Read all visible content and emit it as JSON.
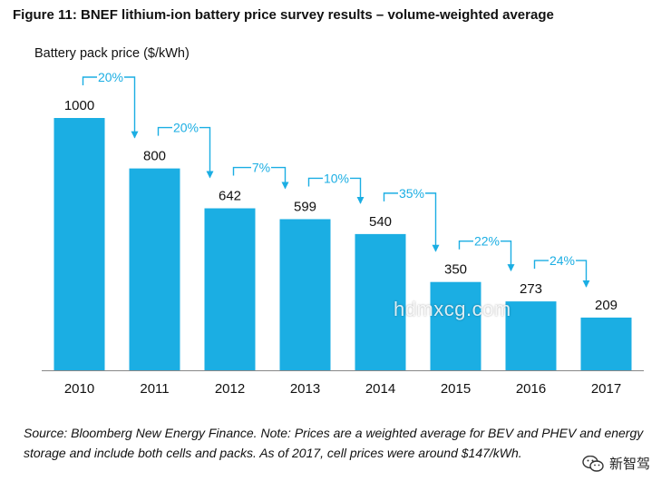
{
  "colors": {
    "bar": "#1BAEE3",
    "arrow": "#1BAEE3",
    "pct_text": "#1BAEE3",
    "axis": "#888888",
    "text": "#111111"
  },
  "watermark": "hdmxcg.com",
  "wechat_label": "新智驾",
  "source_text": "Source: Bloomberg New Energy Finance. Note: Prices are a weighted average for BEV and PHEV and energy storage and include both cells and packs. As of 2017, cell prices were around $147/kWh.",
  "chart_data": {
    "type": "bar",
    "title": "Figure 11: BNEF lithium-ion battery price survey results – volume-weighted average",
    "ylabel": "Battery pack price ($/kWh)",
    "xlabel": "",
    "categories": [
      "2010",
      "2011",
      "2012",
      "2013",
      "2014",
      "2015",
      "2016",
      "2017"
    ],
    "values": [
      1000,
      800,
      642,
      599,
      540,
      350,
      273,
      209
    ],
    "value_labels": [
      "1000",
      "800",
      "642",
      "599",
      "540",
      "350",
      "273",
      "209"
    ],
    "annotations": [
      {
        "from": "2010",
        "to": "2011",
        "text": "20%"
      },
      {
        "from": "2011",
        "to": "2012",
        "text": "20%"
      },
      {
        "from": "2012",
        "to": "2013",
        "text": "7%"
      },
      {
        "from": "2013",
        "to": "2014",
        "text": "10%"
      },
      {
        "from": "2014",
        "to": "2015",
        "text": "35%"
      },
      {
        "from": "2015",
        "to": "2016",
        "text": "22%"
      },
      {
        "from": "2016",
        "to": "2017",
        "text": "24%"
      }
    ],
    "ylim": [
      0,
      1000
    ],
    "grid": false,
    "legend": "none"
  }
}
